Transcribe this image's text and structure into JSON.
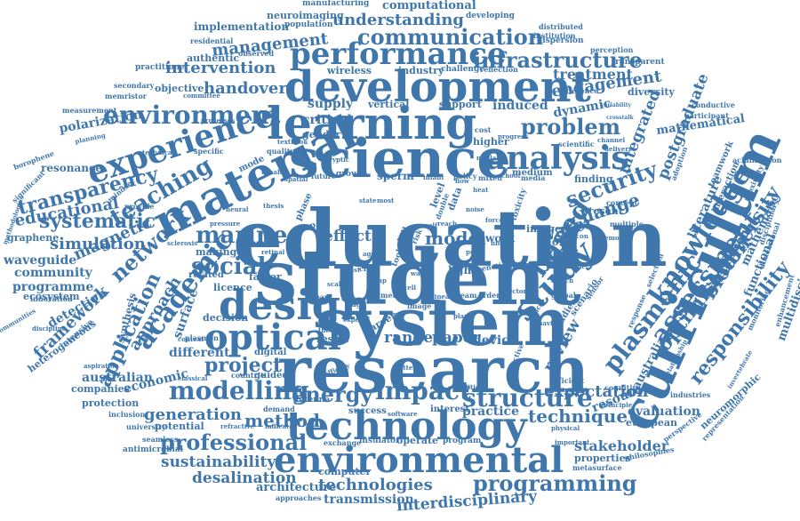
{
  "color": "#3f77ad",
  "words": [
    {
      "text": "education",
      "weight": 100
    },
    {
      "text": "student",
      "weight": 98
    },
    {
      "text": "system",
      "weight": 92
    },
    {
      "text": "research",
      "weight": 90
    },
    {
      "text": "science",
      "weight": 80
    },
    {
      "text": "development",
      "weight": 78
    },
    {
      "text": "learning",
      "weight": 76
    },
    {
      "text": "curriculum",
      "weight": 76
    },
    {
      "text": "material",
      "weight": 72
    },
    {
      "text": "design",
      "weight": 68
    },
    {
      "text": "technology",
      "weight": 64
    },
    {
      "text": "environmental",
      "weight": 62
    },
    {
      "text": "experience",
      "weight": 58
    },
    {
      "text": "analysis",
      "weight": 56
    },
    {
      "text": "optical",
      "weight": 56
    },
    {
      "text": "performance",
      "weight": 52
    },
    {
      "text": "study",
      "weight": 52
    },
    {
      "text": "knowledge",
      "weight": 50
    },
    {
      "text": "environment",
      "weight": 46
    },
    {
      "text": "based",
      "weight": 46
    },
    {
      "text": "plasmonic",
      "weight": 44
    },
    {
      "text": "assessment",
      "weight": 44
    },
    {
      "text": "modelling",
      "weight": 44
    },
    {
      "text": "academic",
      "weight": 42
    },
    {
      "text": "structure",
      "weight": 42
    },
    {
      "text": "impact",
      "weight": 42
    },
    {
      "text": "communication",
      "weight": 40
    },
    {
      "text": "infrastructure",
      "weight": 40
    },
    {
      "text": "teaching",
      "weight": 40
    },
    {
      "text": "marine",
      "weight": 38
    },
    {
      "text": "social",
      "weight": 38
    },
    {
      "text": "problem",
      "weight": 36
    },
    {
      "text": "security",
      "weight": 36
    },
    {
      "text": "energy",
      "weight": 36
    },
    {
      "text": "professional",
      "weight": 36
    },
    {
      "text": "programming",
      "weight": 34
    },
    {
      "text": "network",
      "weight": 34
    },
    {
      "text": "biodiversity",
      "weight": 34
    },
    {
      "text": "responsibility",
      "weight": 34
    },
    {
      "text": "optimisation",
      "weight": 34
    },
    {
      "text": "transparency",
      "weight": 32
    },
    {
      "text": "systematic",
      "weight": 32
    },
    {
      "text": "application",
      "weight": 32
    },
    {
      "text": "project",
      "weight": 32
    },
    {
      "text": "technique",
      "weight": 30
    },
    {
      "text": "change",
      "weight": 30
    },
    {
      "text": "water",
      "weight": 30
    },
    {
      "text": "method",
      "weight": 30
    },
    {
      "text": "model",
      "weight": 30
    },
    {
      "text": "sustainability",
      "weight": 28
    },
    {
      "text": "management",
      "weight": 28
    },
    {
      "text": "understanding",
      "weight": 28
    },
    {
      "text": "intervention",
      "weight": 28
    },
    {
      "text": "handover",
      "weight": 28
    },
    {
      "text": "engagement",
      "weight": 28
    },
    {
      "text": "integrated",
      "weight": 28
    },
    {
      "text": "postgraduate",
      "weight": 28
    },
    {
      "text": "review",
      "weight": 28
    },
    {
      "text": "expectation",
      "weight": 28
    },
    {
      "text": "generation",
      "weight": 28
    },
    {
      "text": "technologies",
      "weight": 28
    },
    {
      "text": "interdisciplinary",
      "weight": 28
    },
    {
      "text": "simulation",
      "weight": 26
    },
    {
      "text": "educational",
      "weight": 26
    },
    {
      "text": "magnetic",
      "weight": 26
    },
    {
      "text": "approach",
      "weight": 26
    },
    {
      "text": "framework",
      "weight": 26
    },
    {
      "text": "desalination",
      "weight": 26
    },
    {
      "text": "stakeholder",
      "weight": 26
    },
    {
      "text": "treatment",
      "weight": 26
    },
    {
      "text": "effect",
      "weight": 26
    },
    {
      "text": "range",
      "weight": 26
    },
    {
      "text": "paper",
      "weight": 26
    },
    {
      "text": "computational",
      "weight": 22
    },
    {
      "text": "supply",
      "weight": 22
    },
    {
      "text": "critical",
      "weight": 22
    },
    {
      "text": "dynamic",
      "weight": 22
    },
    {
      "text": "induced",
      "weight": 22
    },
    {
      "text": "mathematical",
      "weight": 22
    },
    {
      "text": "literature",
      "weight": 22
    },
    {
      "text": "mathematic",
      "weight": 22
    },
    {
      "text": "integration",
      "weight": 22
    },
    {
      "text": "multidisciplinary",
      "weight": 22
    },
    {
      "text": "functional",
      "weight": 22
    },
    {
      "text": "australia",
      "weight": 22
    },
    {
      "text": "evaluation",
      "weight": 22
    },
    {
      "text": "resource",
      "weight": 22
    },
    {
      "text": "device",
      "weight": 22
    },
    {
      "text": "practice",
      "weight": 22
    },
    {
      "text": "economic",
      "weight": 22
    },
    {
      "text": "surface",
      "weight": 22
    },
    {
      "text": "different",
      "weight": 22
    },
    {
      "text": "community",
      "weight": 22
    },
    {
      "text": "programme",
      "weight": 22
    },
    {
      "text": "waveguide",
      "weight": 22
    },
    {
      "text": "detection",
      "weight": 22
    },
    {
      "text": "australian",
      "weight": 22
    },
    {
      "text": "architecture",
      "weight": 22
    },
    {
      "text": "transmission",
      "weight": 22
    },
    {
      "text": "polarization",
      "weight": 20
    },
    {
      "text": "resonance",
      "weight": 18
    },
    {
      "text": "implementation",
      "weight": 18
    },
    {
      "text": "neuroimaging",
      "weight": 16
    },
    {
      "text": "authentic",
      "weight": 16
    },
    {
      "text": "objective",
      "weight": 16
    },
    {
      "text": "wireless",
      "weight": 16
    },
    {
      "text": "industry",
      "weight": 16
    },
    {
      "text": "vertical",
      "weight": 16
    },
    {
      "text": "support",
      "weight": 16
    },
    {
      "text": "finding",
      "weight": 16
    },
    {
      "text": "present",
      "weight": 16
    },
    {
      "text": "higher",
      "weight": 16
    },
    {
      "text": "sperm",
      "weight": 16
    },
    {
      "text": "gender",
      "weight": 16
    },
    {
      "text": "factor",
      "weight": 16
    },
    {
      "text": "licence",
      "weight": 16
    },
    {
      "text": "decision",
      "weight": 16
    },
    {
      "text": "making",
      "weight": 16
    },
    {
      "text": "related",
      "weight": 16
    },
    {
      "text": "synthesis",
      "weight": 16
    },
    {
      "text": "protection",
      "weight": 16
    },
    {
      "text": "potential",
      "weight": 16
    },
    {
      "text": "computer",
      "weight": 16
    },
    {
      "text": "operate",
      "weight": 16
    },
    {
      "text": "companies",
      "weight": 16
    },
    {
      "text": "neuromorphic",
      "weight": 16
    },
    {
      "text": "european",
      "weight": 16
    },
    {
      "text": "properties",
      "weight": 16
    },
    {
      "text": "heterogeneous",
      "weight": 16
    },
    {
      "text": "graphene",
      "weight": 16
    },
    {
      "text": "ecosystem",
      "weight": 16
    },
    {
      "text": "diversity",
      "weight": 16
    },
    {
      "text": "light",
      "weight": 16
    },
    {
      "text": "work",
      "weight": 16
    },
    {
      "text": "more",
      "weight": 16
    },
    {
      "text": "integer",
      "weight": 16
    },
    {
      "text": "result",
      "weight": 16
    },
    {
      "text": "career",
      "weight": 16
    },
    {
      "text": "interest",
      "weight": 16
    },
    {
      "text": "success",
      "weight": 14
    },
    {
      "text": "guided",
      "weight": 14
    },
    {
      "text": "digital",
      "weight": 14
    },
    {
      "text": "medium",
      "weight": 14
    },
    {
      "text": "manufacturing",
      "weight": 13
    },
    {
      "text": "population",
      "weight": 13
    },
    {
      "text": "developing",
      "weight": 13
    },
    {
      "text": "dispersion",
      "weight": 13
    },
    {
      "text": "transparent",
      "weight": 13
    },
    {
      "text": "observed",
      "weight": 12
    },
    {
      "text": "residential",
      "weight": 12
    },
    {
      "text": "practitioner",
      "weight": 12
    },
    {
      "text": "secondary",
      "weight": 12
    },
    {
      "text": "memristor",
      "weight": 12
    },
    {
      "text": "measurement",
      "weight": 12
    },
    {
      "text": "challenge",
      "weight": 12
    },
    {
      "text": "reflection",
      "weight": 12
    },
    {
      "text": "perception",
      "weight": 12
    },
    {
      "text": "institution",
      "weight": 12
    },
    {
      "text": "distributed",
      "weight": 12
    },
    {
      "text": "difference",
      "weight": 12
    },
    {
      "text": "participant",
      "weight": 12
    },
    {
      "text": "acidification",
      "weight": 12
    },
    {
      "text": "conductive",
      "weight": 12
    },
    {
      "text": "teamwork",
      "weight": 12
    },
    {
      "text": "interaction",
      "weight": 12
    },
    {
      "text": "monitoring",
      "weight": 12
    },
    {
      "text": "enhancement",
      "weight": 12
    },
    {
      "text": "representation",
      "weight": 12
    },
    {
      "text": "philosophies",
      "weight": 12
    },
    {
      "text": "metasurface",
      "weight": 12
    },
    {
      "text": "perspective",
      "weight": 12
    },
    {
      "text": "industries",
      "weight": 12
    },
    {
      "text": "cognitive",
      "weight": 12
    },
    {
      "text": "efficient",
      "weight": 12
    },
    {
      "text": "emotion",
      "weight": 12
    },
    {
      "text": "selection",
      "weight": 12
    },
    {
      "text": "response",
      "weight": 12
    },
    {
      "text": "concept",
      "weight": 12
    },
    {
      "text": "multiple",
      "weight": 12
    },
    {
      "text": "scientific",
      "weight": 12
    },
    {
      "text": "channel",
      "weight": 12
    },
    {
      "text": "delivery",
      "weight": 12
    },
    {
      "text": "adoption",
      "weight": 12
    },
    {
      "text": "invertebrate",
      "weight": 12
    },
    {
      "text": "disciplinary",
      "weight": 12
    },
    {
      "text": "proximity",
      "weight": 12
    },
    {
      "text": "dimensional",
      "weight": 12
    },
    {
      "text": "global",
      "weight": 12
    },
    {
      "text": "space",
      "weight": 12
    },
    {
      "text": "studies",
      "weight": 12
    },
    {
      "text": "scenario",
      "weight": 12
    },
    {
      "text": "sensor",
      "weight": 12
    },
    {
      "text": "behavior",
      "weight": 12
    },
    {
      "text": "mixed",
      "weight": 12
    },
    {
      "text": "policy",
      "weight": 12
    },
    {
      "text": "school",
      "weight": 12
    },
    {
      "text": "media",
      "weight": 12
    },
    {
      "text": "toxicity",
      "weight": 12
    },
    {
      "text": "level",
      "weight": 12
    },
    {
      "text": "data",
      "weight": 12
    },
    {
      "text": "growth",
      "weight": 12
    },
    {
      "text": "future",
      "weight": 12
    },
    {
      "text": "spatial",
      "weight": 12
    },
    {
      "text": "quality",
      "weight": 12
    },
    {
      "text": "mode",
      "weight": 12
    },
    {
      "text": "specific",
      "weight": 12
    },
    {
      "text": "technical",
      "weight": 12
    },
    {
      "text": "planning",
      "weight": 12
    },
    {
      "text": "borophene",
      "weight": 12
    },
    {
      "text": "significant",
      "weight": 12
    },
    {
      "text": "provide",
      "weight": 12
    },
    {
      "text": "mindset",
      "weight": 12
    },
    {
      "text": "methodologies",
      "weight": 12
    },
    {
      "text": "communities",
      "weight": 12
    },
    {
      "text": "discipline",
      "weight": 12
    },
    {
      "text": "innovation",
      "weight": 12
    },
    {
      "text": "intensive",
      "weight": 12
    },
    {
      "text": "plasmon",
      "weight": 12
    },
    {
      "text": "context",
      "weight": 12
    },
    {
      "text": "aspiration",
      "weight": 12
    },
    {
      "text": "classical",
      "weight": 12
    },
    {
      "text": "countrie",
      "weight": 12
    },
    {
      "text": "inclusion",
      "weight": 12
    },
    {
      "text": "university",
      "weight": 12
    },
    {
      "text": "seamless",
      "weight": 12
    },
    {
      "text": "antimicrobial",
      "weight": 12
    },
    {
      "text": "refractive",
      "weight": 12
    },
    {
      "text": "indicator",
      "weight": 12
    },
    {
      "text": "antenna",
      "weight": 12
    },
    {
      "text": "demand",
      "weight": 12
    },
    {
      "text": "exchange",
      "weight": 12
    },
    {
      "text": "insulator",
      "weight": 12
    },
    {
      "text": "program",
      "weight": 12
    },
    {
      "text": "approaches",
      "weight": 12
    },
    {
      "text": "important",
      "weight": 12
    },
    {
      "text": "physical",
      "weight": 12
    },
    {
      "text": "principle",
      "weight": 12
    },
    {
      "text": "relationship",
      "weight": 12
    },
    {
      "text": "variability",
      "weight": 12
    },
    {
      "text": "crosstalk",
      "weight": 12
    },
    {
      "text": "committee",
      "weight": 10
    },
    {
      "text": "processes",
      "weight": 10
    },
    {
      "text": "theory",
      "weight": 10
    },
    {
      "text": "team",
      "weight": 10
    },
    {
      "text": "order",
      "weight": 10
    },
    {
      "text": "linear",
      "weight": 10
    },
    {
      "text": "metal",
      "weight": 10
    },
    {
      "text": "image",
      "weight": 10
    },
    {
      "text": "edge",
      "weight": 10
    },
    {
      "text": "year",
      "weight": 10
    },
    {
      "text": "group",
      "weight": 10
    },
    {
      "text": "phase",
      "weight": 10
    },
    {
      "text": "neural",
      "weight": 10
    },
    {
      "text": "sector",
      "weight": 10
    },
    {
      "text": "effective",
      "weight": 10
    },
    {
      "text": "addition",
      "weight": 10
    },
    {
      "text": "software",
      "weight": 10
    },
    {
      "text": "battery",
      "weight": 10
    },
    {
      "text": "matlab",
      "weight": 10
    },
    {
      "text": "progress",
      "weight": 10
    },
    {
      "text": "genetic",
      "weight": 10
    },
    {
      "text": "relevance",
      "weight": 10
    },
    {
      "text": "switch",
      "weight": 10
    },
    {
      "text": "current",
      "weight": 10
    },
    {
      "text": "state",
      "weight": 10
    },
    {
      "text": "most",
      "weight": 10
    },
    {
      "text": "skill",
      "weight": 10
    },
    {
      "text": "risk",
      "weight": 10
    },
    {
      "text": "tool",
      "weight": 10
    },
    {
      "text": "self",
      "weight": 10
    },
    {
      "text": "reach",
      "weight": 10
    },
    {
      "text": "plant",
      "weight": 10
    },
    {
      "text": "belief",
      "weight": 10
    },
    {
      "text": "expert",
      "weight": 10
    },
    {
      "text": "civil",
      "weight": 10
    },
    {
      "text": "cost",
      "weight": 10
    },
    {
      "text": "infant",
      "weight": 10
    },
    {
      "text": "double",
      "weight": 10
    },
    {
      "text": "cryptic",
      "weight": 10
    },
    {
      "text": "tunable",
      "weight": 10
    },
    {
      "text": "textbook",
      "weight": 10
    },
    {
      "text": "thesis",
      "weight": 10
    },
    {
      "text": "sclerosis",
      "weight": 10
    },
    {
      "text": "retinal",
      "weight": 10
    },
    {
      "text": "pressure",
      "weight": 10
    },
    {
      "text": "efficacy",
      "weight": 10
    },
    {
      "text": "flow",
      "weight": 10
    },
    {
      "text": "heat",
      "weight": 10
    },
    {
      "text": "force",
      "weight": 10
    },
    {
      "text": "fibre",
      "weight": 10
    },
    {
      "text": "silicon",
      "weight": 10
    },
    {
      "text": "pulse",
      "weight": 10
    },
    {
      "text": "noise",
      "weight": 10
    },
    {
      "text": "wave",
      "weight": 10
    },
    {
      "text": "trust",
      "weight": 10
    },
    {
      "text": "scale",
      "weight": 10
    },
    {
      "text": "cell",
      "weight": 10
    },
    {
      "text": "gas",
      "weight": 10
    },
    {
      "text": "key",
      "weight": 10
    },
    {
      "text": "map",
      "weight": 10
    },
    {
      "text": "law",
      "weight": 10
    },
    {
      "text": "age",
      "weight": 10
    }
  ]
}
